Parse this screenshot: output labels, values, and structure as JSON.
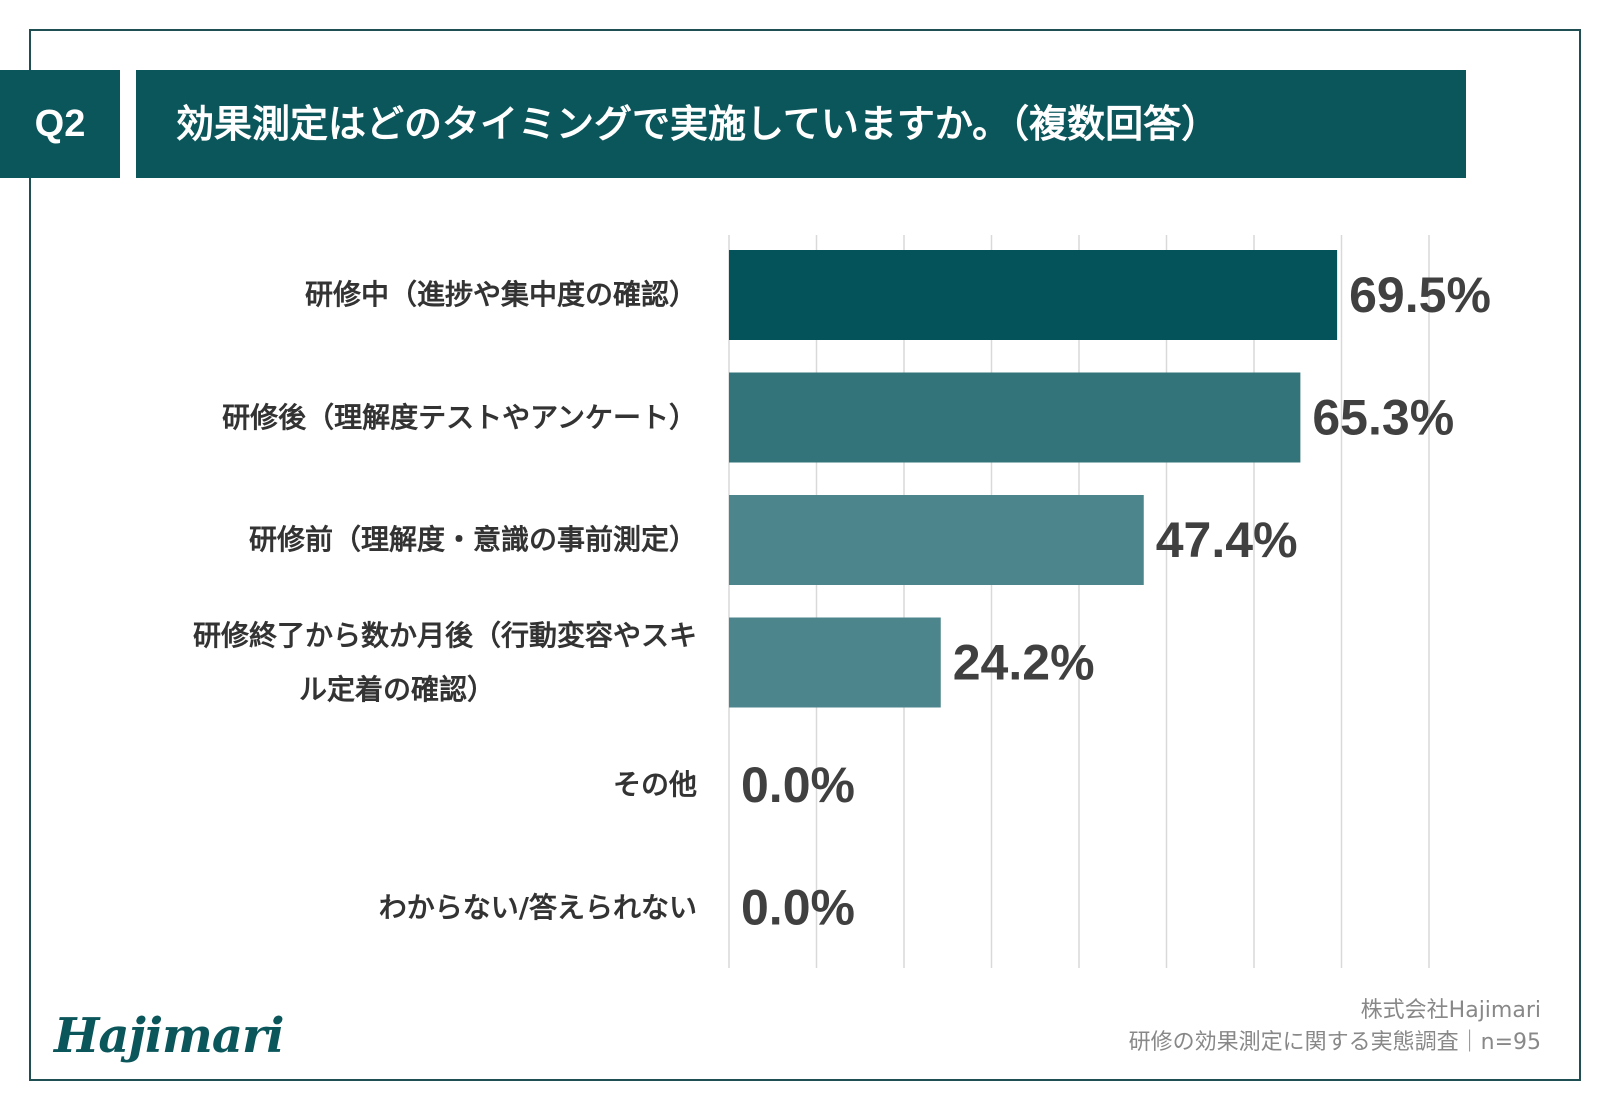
{
  "question": {
    "number": "Q2",
    "title": "効果測定はどのタイミングで実施していますか。（複数回答）"
  },
  "chart_data": {
    "type": "bar",
    "orientation": "horizontal",
    "categories": [
      "研修中（進捗や集中度の確認）",
      "研修後（理解度テストやアンケート）",
      "研修前（理解度・意識の事前測定）",
      "研修終了から数か月後（行動変容やスキル定着の確認）",
      "その他",
      "わからない/答えられない"
    ],
    "category_lines": [
      [
        "研修中（進捗や集中度の確認）"
      ],
      [
        "研修後（理解度テストやアンケート）"
      ],
      [
        "研修前（理解度・意識の事前測定）"
      ],
      [
        "研修終了から数か月後（行動変容やスキ",
        "ル定着の確認）"
      ],
      [
        "その他"
      ],
      [
        "わからない/答えられない"
      ]
    ],
    "values": [
      69.5,
      65.3,
      47.4,
      24.2,
      0.0,
      0.0
    ],
    "value_labels": [
      "69.5%",
      "65.3%",
      "47.4%",
      "24.2%",
      "0.0%",
      "0.0%"
    ],
    "xlim": [
      0,
      80
    ],
    "grid": true,
    "bar_colors": [
      "#04525a",
      "#33747a",
      "#4c868c",
      "#4c868c",
      "#4c868c",
      "#4c868c"
    ]
  },
  "footer": {
    "logo": "Hajimari",
    "company": "株式会社Hajimari",
    "source": "研修の効果測定に関する実態調査｜n=95"
  },
  "colors": {
    "accent": "#0b565b",
    "grid": "#d9d9d9",
    "value_text": "#404040"
  }
}
